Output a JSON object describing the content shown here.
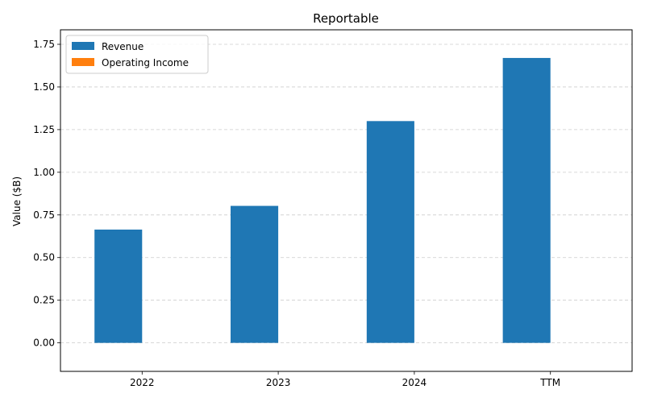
{
  "chart_data": {
    "type": "bar",
    "title": "Reportable",
    "xlabel": "",
    "ylabel": "Value ($B)",
    "categories": [
      "2022",
      "2023",
      "2024",
      "TTM"
    ],
    "series": [
      {
        "name": "Revenue",
        "values": [
          0.664,
          0.803,
          1.3,
          1.67
        ],
        "color": "#1f77b4"
      },
      {
        "name": "Operating Income",
        "values": [
          0,
          0,
          0,
          0
        ],
        "color": "#ff7f0e"
      }
    ],
    "ylim": [
      -0.167,
      1.835
    ],
    "yticks": [
      "0.00",
      "0.25",
      "0.50",
      "0.75",
      "1.00",
      "1.25",
      "1.50",
      "1.75"
    ],
    "grid": "y-dashed",
    "legend": "top-left"
  }
}
